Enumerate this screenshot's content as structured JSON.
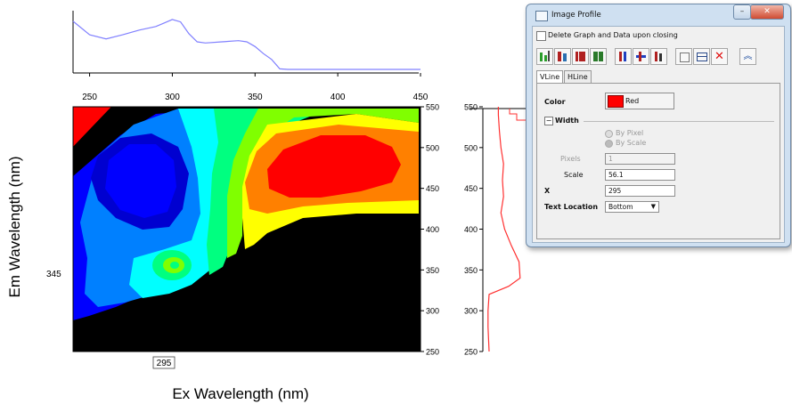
{
  "chart_data": {
    "type": "heatmap",
    "xlabel": "Ex Wavelength (nm)",
    "ylabel": "Em Wavelength (nm)",
    "xlim": [
      240,
      450
    ],
    "ylim": [
      250,
      550
    ],
    "x_ticks": [
      "250",
      "300",
      "350",
      "400",
      "450"
    ],
    "y_ticks": [
      "250",
      "300",
      "350",
      "400",
      "450",
      "500",
      "550"
    ],
    "crosshair_x": "295",
    "crosshair_y": "345",
    "colormap": [
      "#000000",
      "#0000ff",
      "#0080ff",
      "#00ffff",
      "#00ff80",
      "#80ff00",
      "#ffff00",
      "#ff8000",
      "#ff0000"
    ],
    "top_profile": {
      "description_color": "#8080ff",
      "x": [
        240,
        250,
        260,
        270,
        280,
        290,
        295,
        300,
        305,
        310,
        315,
        320,
        330,
        340,
        345,
        350,
        355,
        360,
        365,
        370,
        400,
        450
      ],
      "y": [
        0.85,
        0.62,
        0.55,
        0.62,
        0.7,
        0.76,
        0.82,
        0.88,
        0.84,
        0.64,
        0.5,
        0.48,
        0.5,
        0.52,
        0.5,
        0.42,
        0.3,
        0.2,
        0.04,
        0.03,
        0.03,
        0.03
      ]
    },
    "right_profile": {
      "color": "#ff3030",
      "y": [
        250,
        280,
        300,
        320,
        330,
        340,
        360,
        380,
        400,
        420,
        440,
        460,
        480,
        500,
        520,
        540,
        550
      ],
      "value": [
        0.12,
        0.1,
        0.1,
        0.12,
        0.5,
        0.72,
        0.7,
        0.55,
        0.42,
        0.35,
        0.4,
        0.38,
        0.4,
        0.35,
        0.32,
        0.3,
        0.3
      ]
    }
  },
  "dialog": {
    "title": "Image Profile",
    "delete_option": "Delete Graph and Data upon closing",
    "tabs": [
      "VLine",
      "HLine"
    ],
    "color_label": "Color",
    "color_value": "Red",
    "color_swatch": "#ff0000",
    "width_label": "Width",
    "by_pixel": "By Pixel",
    "by_scale": "By Scale",
    "pixels_label": "Pixels",
    "pixels_value": "1",
    "scale_label": "Scale",
    "scale_value": "56.1",
    "x_label": "X",
    "x_value": "295",
    "text_location_label": "Text Location",
    "text_location_value": "Bottom",
    "toolbar_icons": [
      "bar-green-icon",
      "bar-red-icon",
      "bar-grid-icon",
      "bar-grid2-icon",
      "hline-blue-icon",
      "hline-red-icon",
      "vline-red-icon",
      "export-icon",
      "copy-icon",
      "close-red-icon",
      "collapse-icon"
    ]
  }
}
